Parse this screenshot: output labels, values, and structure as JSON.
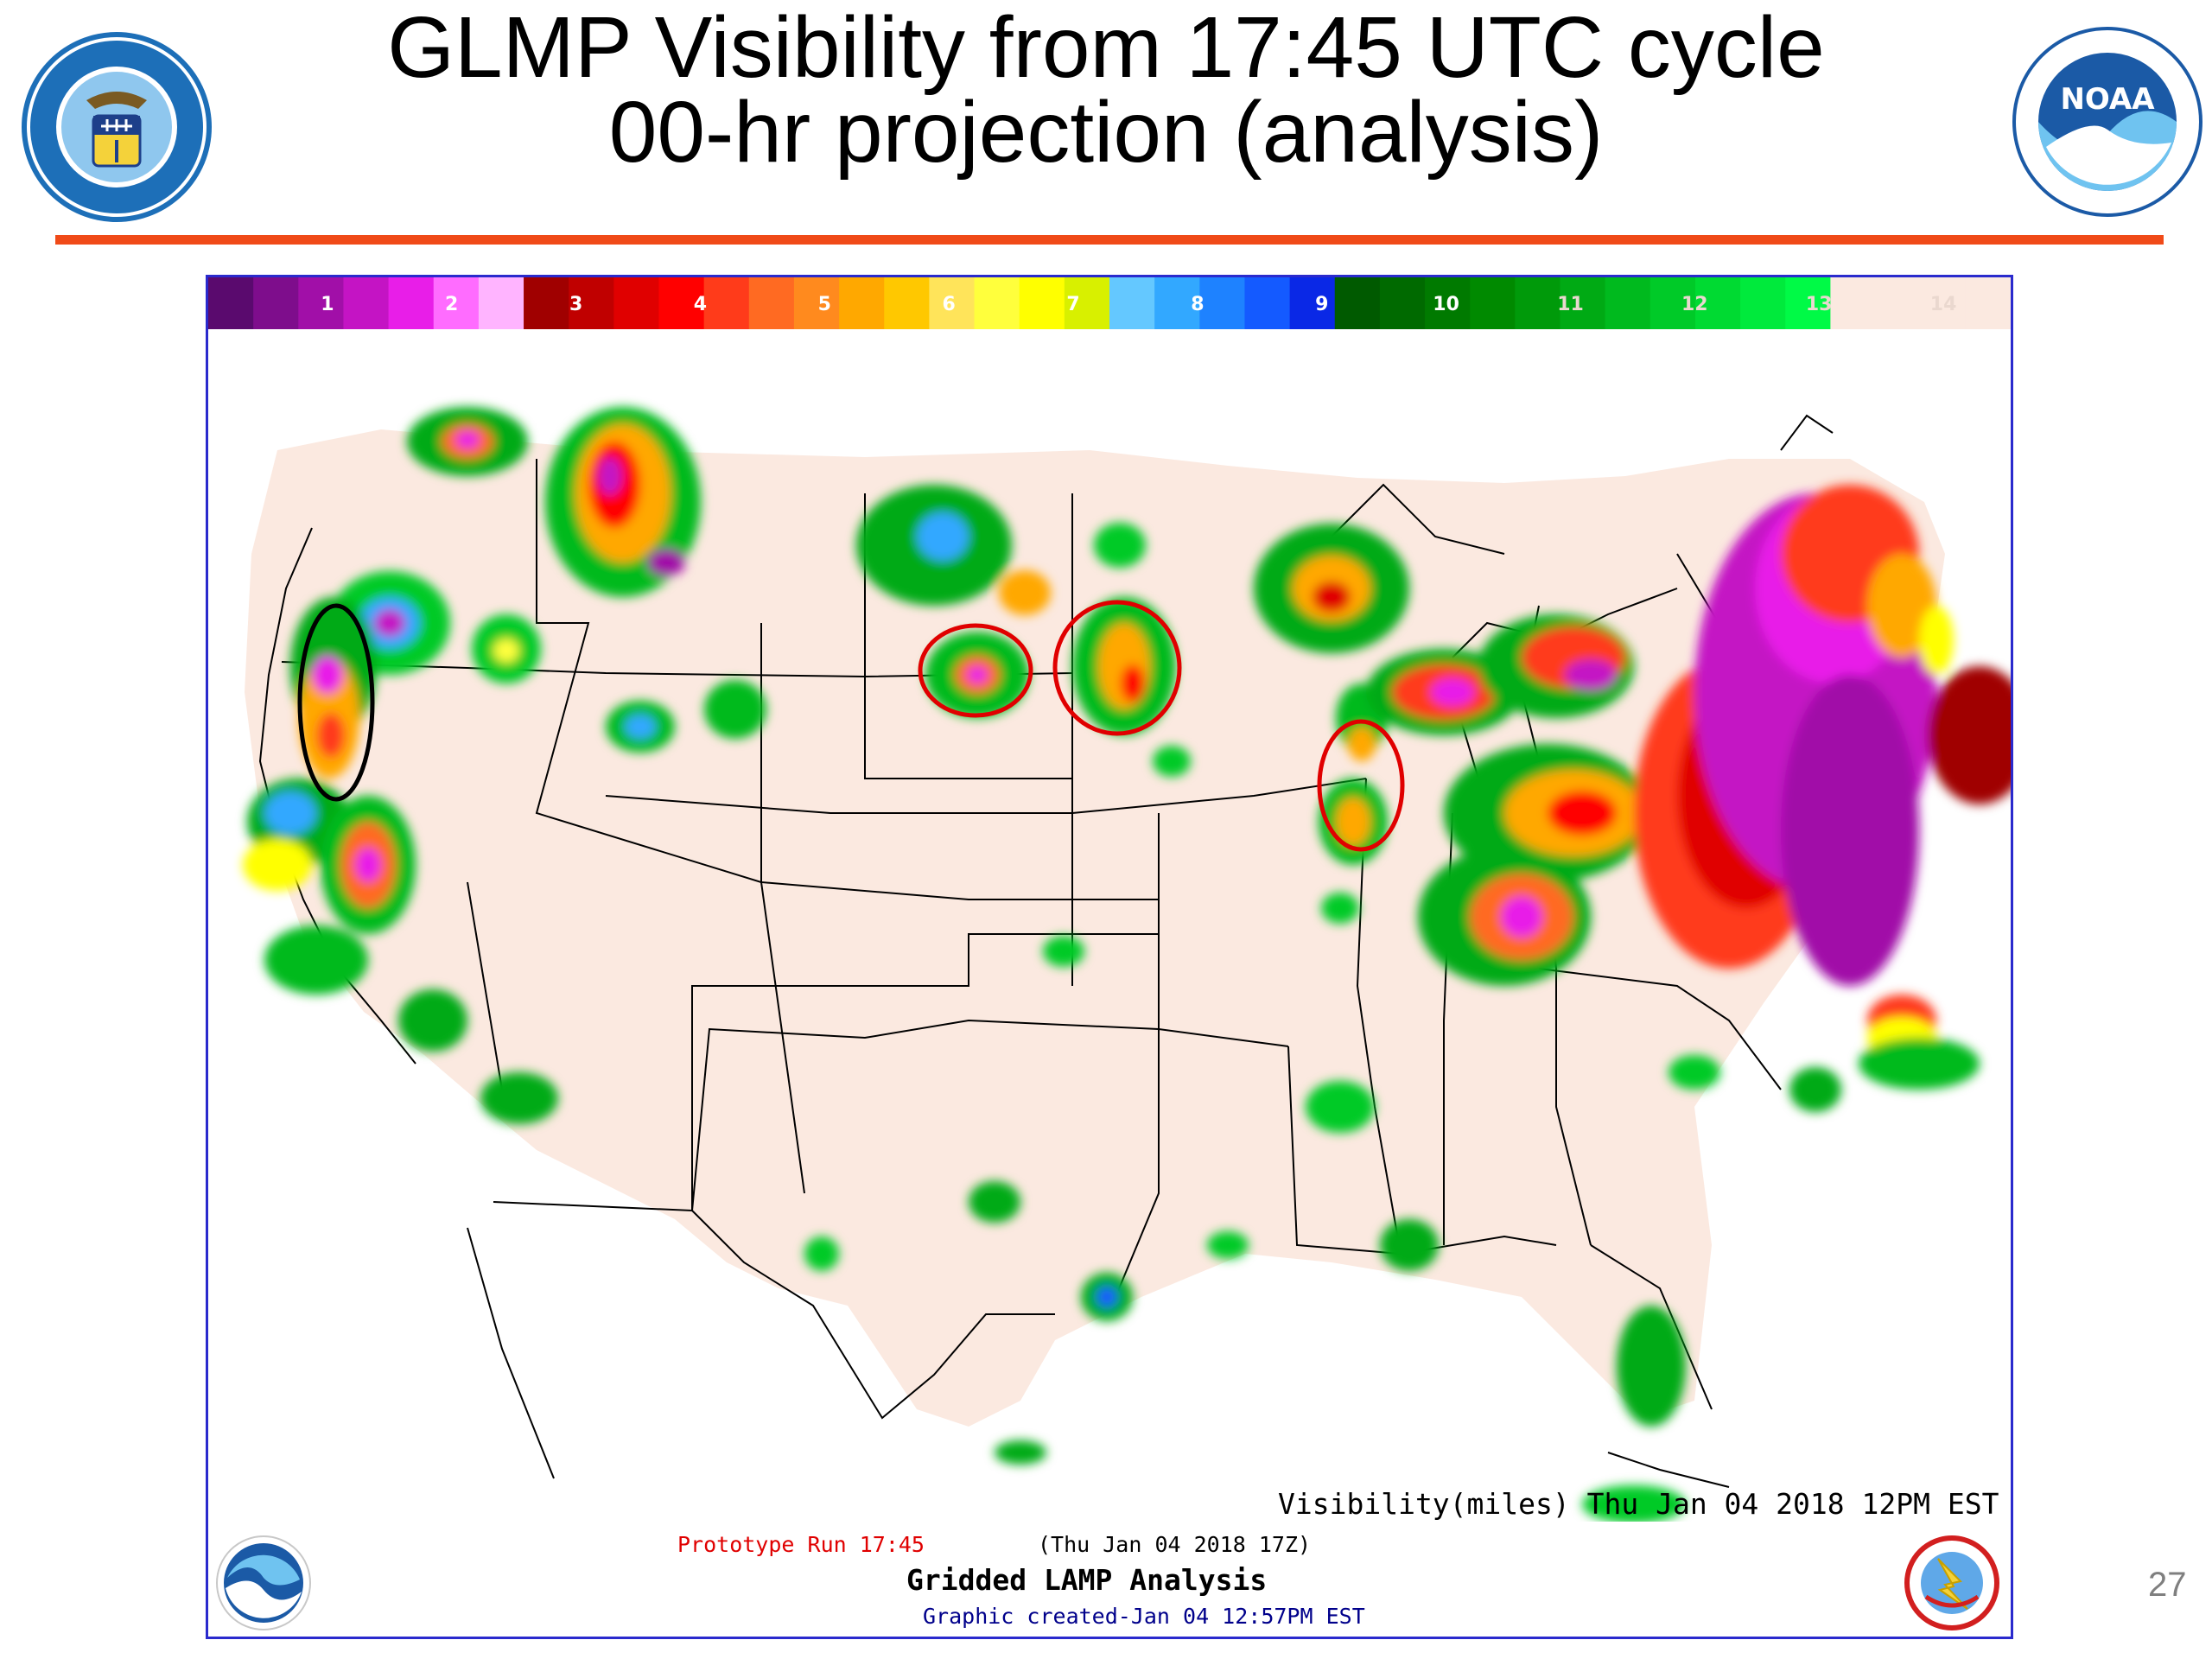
{
  "title": {
    "line1": "GLMP Visibility from 17:45 UTC cycle",
    "line2": "00-hr projection (analysis)"
  },
  "logos": {
    "left_seal_icon": "department-of-commerce-seal-icon",
    "left_seal_text": "DEPARTMENT OF COMMERCE · UNITED STATES OF AMERICA",
    "right_seal_icon": "noaa-seal-icon",
    "right_seal_text": "NATIONAL OCEANIC AND ATMOSPHERIC ADMINISTRATION · U.S. DEPARTMENT OF COMMERCE",
    "noaa_wordmark": "NOAA",
    "nws_logo_icon": "national-weather-service-logo-icon",
    "nws_text": "NATIONAL WEATHER SERVICE"
  },
  "colorbar": {
    "labels": [
      "1",
      "2",
      "3",
      "4",
      "5",
      "6",
      "7",
      "8",
      "9",
      "10",
      "11",
      "12",
      "13",
      "14"
    ],
    "colors": [
      "#5a0a6e",
      "#7e0d8c",
      "#a10fa8",
      "#c414c4",
      "#e81ee8",
      "#ff6cff",
      "#ffb4ff",
      "#a00000",
      "#c00000",
      "#e00000",
      "#ff0000",
      "#ff3b1a",
      "#ff6a22",
      "#ff8a1e",
      "#ffa800",
      "#ffc800",
      "#ffe45a",
      "#ffff3c",
      "#ffff00",
      "#d8f000",
      "#64c8ff",
      "#32a8ff",
      "#1e82ff",
      "#145aff",
      "#0a28e6",
      "#005a00",
      "#006a00",
      "#007a00",
      "#008a00",
      "#009a0a",
      "#00aa14",
      "#00ba1e",
      "#00ca28",
      "#00da32",
      "#00ea3c",
      "#00fa46",
      "#fbe9e0",
      "#fbe9e0",
      "#fbe9e0",
      "#fbe9e0"
    ]
  },
  "footer": {
    "visibility": "Visibility(miles) Thu Jan 04 2018 12PM EST",
    "prototype": "Prototype Run 17:45",
    "valid_time": "(Thu Jan 04 2018 17Z)",
    "product": "Gridded LAMP Analysis",
    "created": "Graphic created-Jan 04 12:57PM EST"
  },
  "annotations": [
    {
      "color": "#000000",
      "region": "Northern California / Oregon coast"
    },
    {
      "color": "#e00000",
      "region": "South Dakota"
    },
    {
      "color": "#e00000",
      "region": "Minnesota / Iowa"
    },
    {
      "color": "#e00000",
      "region": "Northern Illinois"
    }
  ],
  "page_number": "27",
  "colors": {
    "rule": "#f04a18",
    "panel_border": "#2a2acd",
    "clear_visibility": "#fbe9e0",
    "annotation_red": "#e00000",
    "annotation_black": "#000000"
  }
}
